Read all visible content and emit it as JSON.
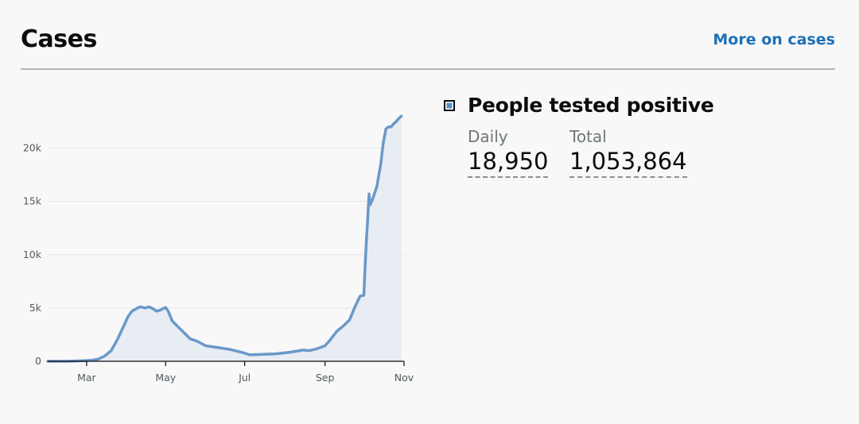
{
  "header": {
    "title": "Cases",
    "more_link": "More on cases"
  },
  "legend": {
    "label": "People tested positive",
    "swatch_color": "#5a8fc8"
  },
  "stats": {
    "daily_label": "Daily",
    "daily_value": "18,950",
    "total_label": "Total",
    "total_value": "1,053,864"
  },
  "colors": {
    "line": "#6a98c9",
    "fill": "#e8edf3",
    "link": "#1d70b8",
    "grid": "#e6e6e6"
  },
  "chart_data": {
    "type": "area",
    "title": "",
    "xlabel": "",
    "ylabel": "",
    "ylim": [
      0,
      22500
    ],
    "y_ticks": [
      0,
      5000,
      10000,
      15000,
      20000
    ],
    "y_tick_labels": [
      "0",
      "5k",
      "10k",
      "15k",
      "20k"
    ],
    "x_ticks": [
      "2020-03-01",
      "2020-05-01",
      "2020-07-01",
      "2020-09-01",
      "2020-11-01"
    ],
    "x_tick_labels": [
      "Mar",
      "May",
      "Jul",
      "Sep",
      "Nov"
    ],
    "grid": true,
    "series": [
      {
        "x": [
          "2020-01-31",
          "2020-02-15",
          "2020-02-28",
          "2020-03-05",
          "2020-03-10",
          "2020-03-15",
          "2020-03-20",
          "2020-03-25",
          "2020-03-30",
          "2020-04-02",
          "2020-04-05",
          "2020-04-08",
          "2020-04-10",
          "2020-04-12",
          "2020-04-15",
          "2020-04-18",
          "2020-04-21",
          "2020-04-24",
          "2020-04-27",
          "2020-04-29",
          "2020-05-01",
          "2020-05-03",
          "2020-05-06",
          "2020-05-10",
          "2020-05-15",
          "2020-05-20",
          "2020-05-25",
          "2020-06-01",
          "2020-06-10",
          "2020-06-20",
          "2020-06-30",
          "2020-07-05",
          "2020-07-15",
          "2020-07-25",
          "2020-08-05",
          "2020-08-15",
          "2020-08-20",
          "2020-08-25",
          "2020-09-01",
          "2020-09-05",
          "2020-09-10",
          "2020-09-15",
          "2020-09-20",
          "2020-09-23",
          "2020-09-26",
          "2020-09-28",
          "2020-10-01",
          "2020-10-02",
          "2020-10-03",
          "2020-10-04",
          "2020-10-05",
          "2020-10-06",
          "2020-10-08",
          "2020-10-11",
          "2020-10-14",
          "2020-10-16",
          "2020-10-18",
          "2020-10-20",
          "2020-10-22",
          "2020-10-24",
          "2020-10-26",
          "2020-10-28",
          "2020-10-30"
        ],
        "values": [
          0,
          0,
          50,
          100,
          200,
          500,
          1000,
          2100,
          3400,
          4200,
          4700,
          4900,
          5050,
          5100,
          5000,
          5100,
          4950,
          4700,
          4800,
          4950,
          5050,
          4700,
          3800,
          3300,
          2700,
          2100,
          1900,
          1450,
          1300,
          1100,
          800,
          600,
          650,
          700,
          850,
          1050,
          1000,
          1150,
          1450,
          2000,
          2800,
          3300,
          3900,
          4800,
          5600,
          6100,
          6200,
          9000,
          11500,
          13500,
          15700,
          14700,
          15300,
          16400,
          18500,
          20500,
          21800,
          22000,
          22000,
          22300,
          22500,
          22800,
          23000
        ]
      }
    ]
  }
}
